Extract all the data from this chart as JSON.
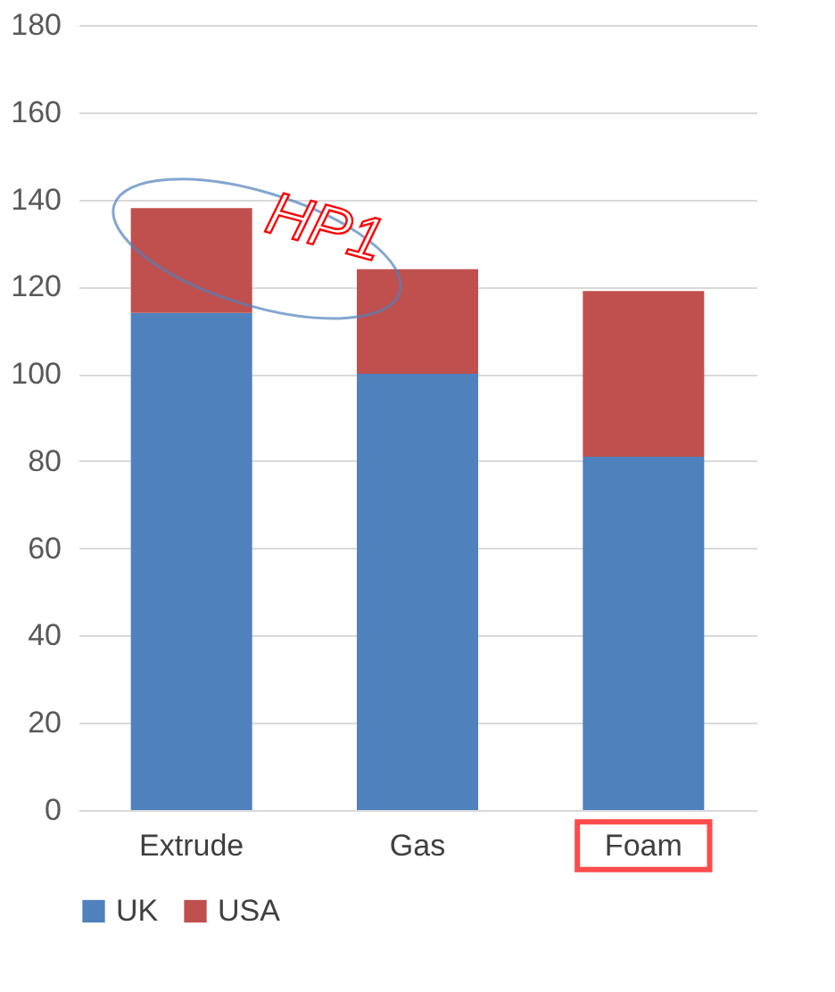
{
  "chart_data": {
    "type": "bar",
    "stacked": true,
    "categories": [
      "Extrude",
      "Gas",
      "Foam"
    ],
    "series": [
      {
        "name": "UK",
        "color": "#4f81bd",
        "values": [
          114,
          100,
          81
        ]
      },
      {
        "name": "USA",
        "color": "#c0504d",
        "values": [
          24,
          24,
          38
        ]
      }
    ],
    "ylim": [
      0,
      180
    ],
    "yticks": [
      0,
      20,
      40,
      60,
      80,
      100,
      120,
      140,
      160,
      180
    ],
    "grid": "y",
    "legend": "bottom",
    "annotations": [
      "HP1"
    ]
  }
}
